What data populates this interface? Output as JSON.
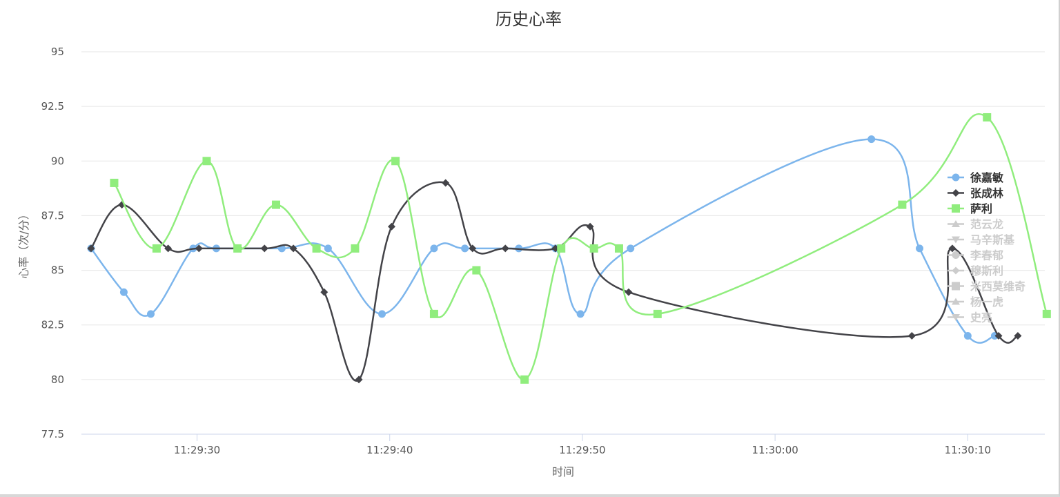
{
  "chart_data": {
    "type": "line",
    "smooth": true,
    "title": "历史心率",
    "xlabel": "时间",
    "ylabel": "心率（次/分）",
    "ylim": [
      77.5,
      95
    ],
    "yticks": [
      "77.5",
      "80",
      "82.5",
      "85",
      "87.5",
      "90",
      "92.5",
      "95"
    ],
    "xlim": [
      "11:29:24",
      "11:30:14"
    ],
    "xticks": [
      "11:29:30",
      "11:29:40",
      "11:29:50",
      "11:30:00",
      "11:30:10"
    ],
    "grid": true,
    "legend_position": "right",
    "series": [
      {
        "name": "徐嘉敏",
        "color": "#7cb5ec",
        "marker": "circle",
        "visible": true,
        "points": [
          [
            "11:29:24.5",
            86
          ],
          [
            "11:29:26.2",
            84
          ],
          [
            "11:29:27.6",
            83
          ],
          [
            "11:29:29.8",
            86
          ],
          [
            "11:29:31.0",
            86
          ],
          [
            "11:29:34.4",
            86
          ],
          [
            "11:29:36.8",
            86
          ],
          [
            "11:29:39.6",
            83
          ],
          [
            "11:29:42.3",
            86
          ],
          [
            "11:29:43.9",
            86
          ],
          [
            "11:29:46.7",
            86
          ],
          [
            "11:29:48.6",
            86
          ],
          [
            "11:29:49.9",
            83
          ],
          [
            "11:29:52.5",
            86
          ],
          [
            "11:30:05.0",
            91
          ],
          [
            "11:30:07.5",
            86
          ],
          [
            "11:30:10.0",
            82
          ],
          [
            "11:30:11.4",
            82
          ]
        ]
      },
      {
        "name": "张成林",
        "color": "#434348",
        "marker": "diamond",
        "visible": true,
        "points": [
          [
            "11:29:24.5",
            86
          ],
          [
            "11:29:26.1",
            88
          ],
          [
            "11:29:28.5",
            86
          ],
          [
            "11:29:30.1",
            86
          ],
          [
            "11:29:33.5",
            86
          ],
          [
            "11:29:35.0",
            86
          ],
          [
            "11:29:36.6",
            84
          ],
          [
            "11:29:38.4",
            80
          ],
          [
            "11:29:40.1",
            87
          ],
          [
            "11:29:42.9",
            89
          ],
          [
            "11:29:44.3",
            86
          ],
          [
            "11:29:46.0",
            86
          ],
          [
            "11:29:48.6",
            86
          ],
          [
            "11:29:50.4",
            87
          ],
          [
            "11:29:52.4",
            84
          ],
          [
            "11:30:07.1",
            82
          ],
          [
            "11:30:09.2",
            86
          ],
          [
            "11:30:11.6",
            82
          ],
          [
            "11:30:12.6",
            82
          ]
        ]
      },
      {
        "name": "萨利",
        "color": "#90ed7d",
        "marker": "square",
        "visible": true,
        "points": [
          [
            "11:29:25.7",
            89
          ],
          [
            "11:29:27.9",
            86
          ],
          [
            "11:29:30.5",
            90
          ],
          [
            "11:29:32.1",
            86
          ],
          [
            "11:29:34.1",
            88
          ],
          [
            "11:29:36.2",
            86
          ],
          [
            "11:29:38.2",
            86
          ],
          [
            "11:29:40.3",
            90
          ],
          [
            "11:29:42.3",
            83
          ],
          [
            "11:29:44.5",
            85
          ],
          [
            "11:29:47.0",
            80
          ],
          [
            "11:29:48.9",
            86
          ],
          [
            "11:29:50.6",
            86
          ],
          [
            "11:29:51.9",
            86
          ],
          [
            "11:29:53.9",
            83
          ],
          [
            "11:30:06.6",
            88
          ],
          [
            "11:30:11.0",
            92
          ],
          [
            "11:30:14.1",
            83
          ]
        ]
      },
      {
        "name": "范云龙",
        "visible": false,
        "marker": "triangle",
        "points": []
      },
      {
        "name": "马辛斯基",
        "visible": false,
        "marker": "triangle-down",
        "points": []
      },
      {
        "name": "李春郁",
        "visible": false,
        "marker": "circle",
        "points": []
      },
      {
        "name": "穆斯利",
        "visible": false,
        "marker": "diamond",
        "points": []
      },
      {
        "name": "米西莫维奇",
        "visible": false,
        "marker": "square",
        "points": []
      },
      {
        "name": "杨一虎",
        "visible": false,
        "marker": "triangle",
        "points": []
      },
      {
        "name": "史亮",
        "visible": false,
        "marker": "triangle-down",
        "points": []
      }
    ]
  }
}
